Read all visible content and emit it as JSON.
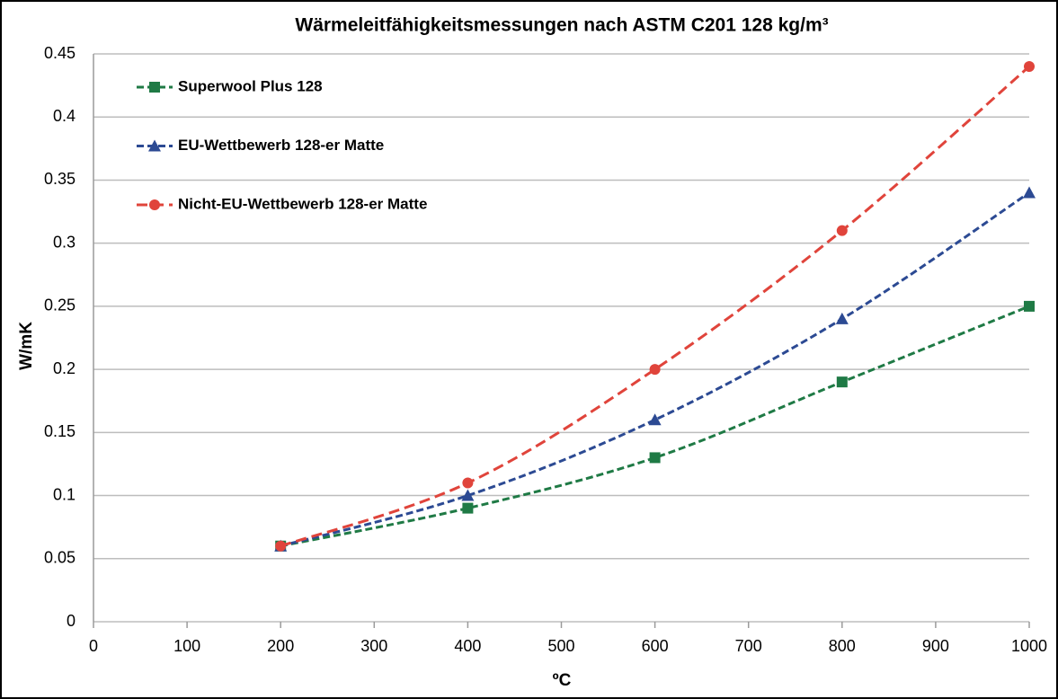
{
  "chart_data": {
    "type": "line",
    "title": "Wärmeleitfähigkeitsmessungen nach ASTM C201 128 kg/m³",
    "x_label": "ºC",
    "y_label": "W/mK",
    "x": [
      200,
      400,
      600,
      800,
      1000
    ],
    "series": [
      {
        "name": "Superwool Plus 128",
        "color": "#1f7a45",
        "marker": "square",
        "values": [
          0.06,
          0.09,
          0.13,
          0.19,
          0.25
        ]
      },
      {
        "name": "EU-Wettbewerb 128-er Matte",
        "color": "#2c4a93",
        "marker": "triangle",
        "values": [
          0.06,
          0.1,
          0.16,
          0.24,
          0.34
        ]
      },
      {
        "name": "Nicht-EU-Wettbewerb 128-er Matte",
        "color": "#e0443b",
        "marker": "circle",
        "values": [
          0.06,
          0.11,
          0.2,
          0.31,
          0.44
        ]
      }
    ],
    "xlim": [
      0,
      1000
    ],
    "xticks": [
      0,
      100,
      200,
      300,
      400,
      500,
      600,
      700,
      800,
      900,
      1000
    ],
    "ylim": [
      0,
      0.45
    ],
    "yticks": [
      0,
      0.05,
      0.1,
      0.15,
      0.2,
      0.25,
      0.3,
      0.35,
      0.4,
      0.45
    ],
    "grid": true,
    "legend": "upper left"
  }
}
